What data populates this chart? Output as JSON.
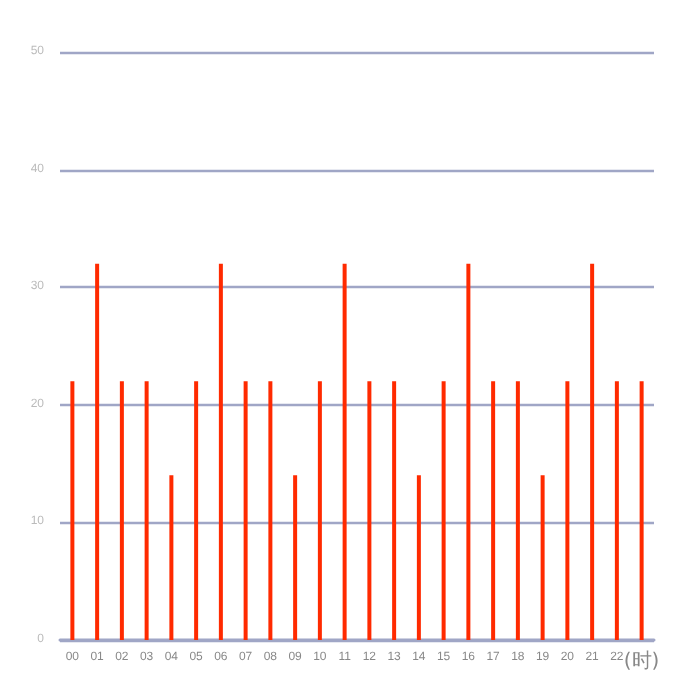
{
  "chart_data": {
    "type": "bar",
    "categories": [
      "00",
      "01",
      "02",
      "03",
      "04",
      "05",
      "06",
      "07",
      "08",
      "09",
      "10",
      "11",
      "12",
      "13",
      "14",
      "15",
      "16",
      "17",
      "18",
      "19",
      "20",
      "21",
      "22",
      "(时)"
    ],
    "values": [
      22,
      32,
      22,
      22,
      14,
      22,
      32,
      22,
      22,
      14,
      22,
      32,
      22,
      22,
      14,
      22,
      32,
      22,
      22,
      14,
      22,
      32,
      22,
      22
    ],
    "color": "#ff2a00",
    "ylim": [
      0,
      50
    ],
    "yticks": [
      0,
      10,
      20,
      30,
      40,
      50
    ],
    "grid": "y"
  }
}
